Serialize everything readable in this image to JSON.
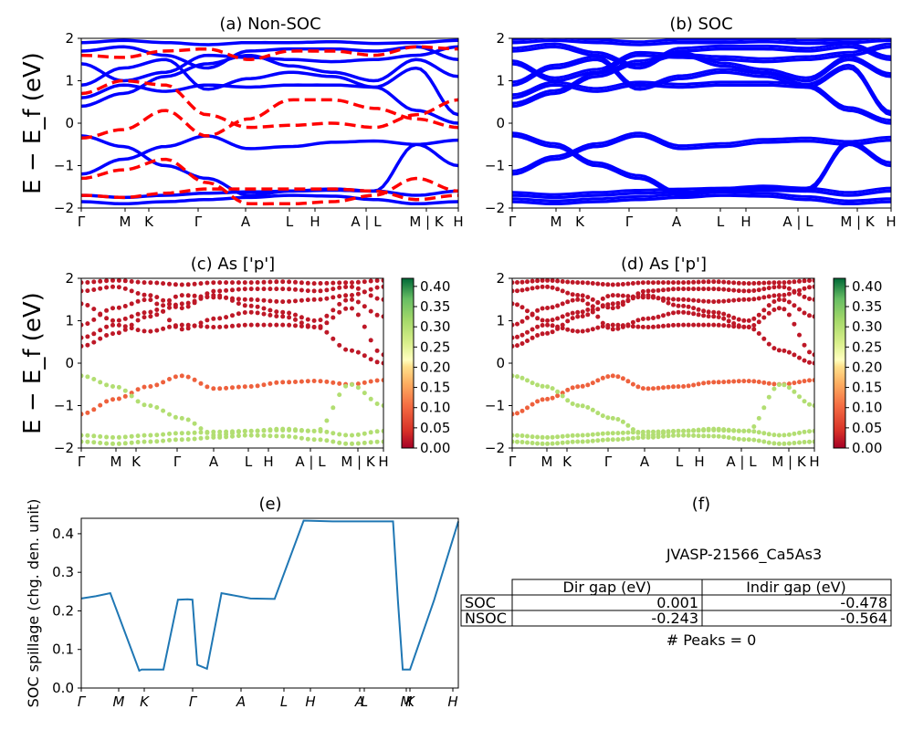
{
  "panels": {
    "a": {
      "title": "(a) Non-SOC"
    },
    "b": {
      "title": "(b) SOC"
    },
    "c": {
      "title": "(c)  As ['p']"
    },
    "d": {
      "title": "(d) As ['p']"
    },
    "e": {
      "title": "(e)"
    },
    "f": {
      "title": "(f)"
    }
  },
  "band_ylabel": "E − E_f (eV)",
  "kpath_labels": [
    "Γ",
    "M",
    "K",
    "Γ",
    "A",
    "L",
    "H",
    "A | L",
    "M | K",
    "H"
  ],
  "kpath_labels_cd": [
    "Γ",
    "M",
    "K",
    "Γ",
    "A",
    "L",
    "H",
    "A | L",
    "M | K",
    "H"
  ],
  "kpath_labels_e": [
    "Γ",
    "M",
    "K",
    "Γ",
    "A",
    "L",
    "H",
    "A",
    "L",
    "M",
    "K",
    "H"
  ],
  "energy_ticks": [
    "2",
    "1",
    "0",
    "−1",
    "−2"
  ],
  "colorbar_ticks": [
    "0.40",
    "0.35",
    "0.30",
    "0.25",
    "0.20",
    "0.15",
    "0.10",
    "0.05",
    "0.00"
  ],
  "colors": {
    "nsoc": "#ff0000",
    "soc": "#0000ff",
    "spillage": "#1f77b4"
  },
  "chart_data": [
    {
      "type": "line",
      "title": "(a) Non-SOC",
      "ylabel": "E − E_f (eV)",
      "ylim": [
        -2,
        2
      ],
      "series": [
        {
          "name": "SOC",
          "style": "solid blue"
        },
        {
          "name": "Non-SOC",
          "style": "dashed red"
        }
      ]
    },
    {
      "type": "line",
      "title": "(b) SOC",
      "ylabel": "",
      "ylim": [
        -2,
        2
      ],
      "series": [
        {
          "name": "SOC",
          "style": "solid blue"
        }
      ]
    },
    {
      "type": "scatter",
      "title": "(c)  As ['p']",
      "ylim": [
        -2,
        2
      ],
      "colormap": "RdYlGn",
      "clim": [
        0,
        0.42
      ]
    },
    {
      "type": "scatter",
      "title": "(d) As ['p']",
      "ylim": [
        -2,
        2
      ],
      "colormap": "RdYlGn",
      "clim": [
        0,
        0.42
      ]
    },
    {
      "type": "line",
      "title": "(e)",
      "ylabel": "SOC spillage (chg. den. unit)",
      "ylim": [
        0,
        0.44
      ],
      "yticks": [
        "0.0",
        "0.1",
        "0.2",
        "0.3",
        "0.4"
      ],
      "x": [
        0,
        3,
        6,
        12,
        12.5,
        17,
        20,
        22,
        23,
        24,
        26,
        29,
        35,
        40,
        46,
        52,
        58,
        63,
        64.5,
        65.5,
        66.5,
        68,
        73,
        78
      ],
      "values": [
        0.232,
        0.238,
        0.246,
        0.045,
        0.048,
        0.048,
        0.229,
        0.23,
        0.229,
        0.06,
        0.05,
        0.246,
        0.232,
        0.231,
        0.434,
        0.432,
        0.432,
        0.432,
        0.432,
        0.228,
        0.048,
        0.048,
        0.228,
        0.432
      ]
    },
    {
      "type": "table",
      "title": "(f)",
      "caption": "JVASP-21566_Ca5As3",
      "columns": [
        "Dir gap (eV)",
        "Indir gap (eV)"
      ],
      "rows": [
        {
          "label": "SOC",
          "dir": "0.001",
          "indir": "-0.478"
        },
        {
          "label": "NSOC",
          "dir": "-0.243",
          "indir": "-0.564"
        }
      ],
      "footer": "# Peaks = 0"
    }
  ]
}
